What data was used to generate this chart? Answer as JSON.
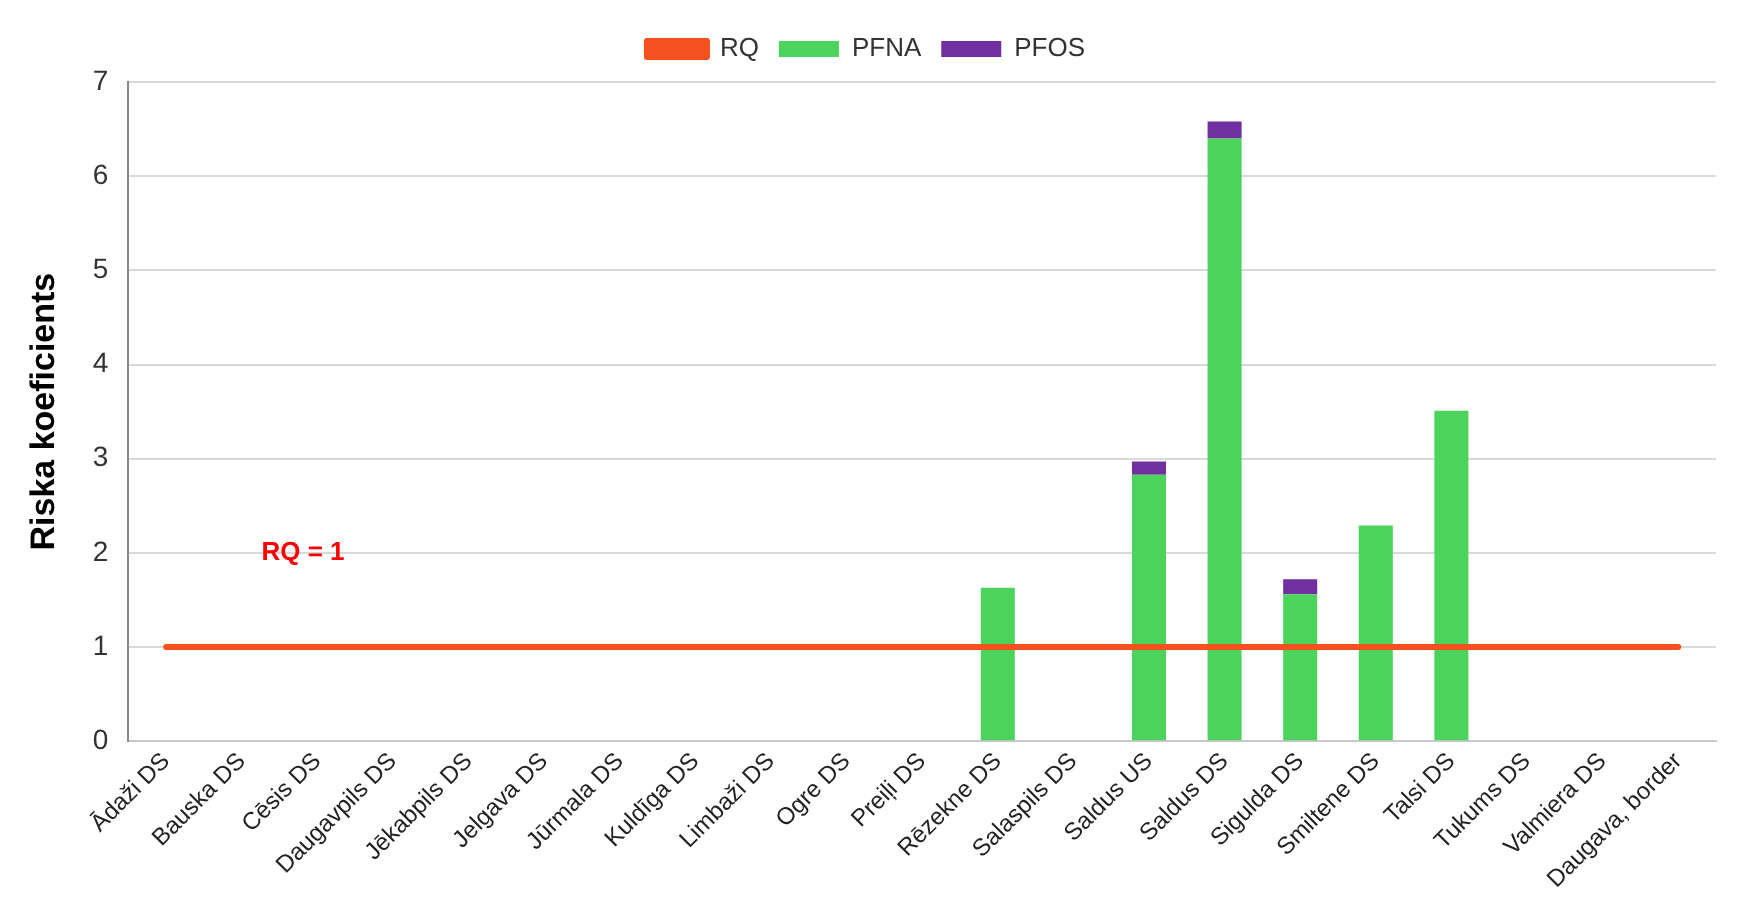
{
  "chart_data": {
    "type": "bar",
    "stacked": true,
    "ylabel": "Riska koeficients",
    "categories": [
      "Ādaži DS",
      "Bauska DS",
      "Cēsis DS",
      "Daugavpils DS",
      "Jēkabpils DS",
      "Jelgava DS",
      "Jūrmala DS",
      "Kuldīga DS",
      "Limbaži DS",
      "Ogre DS",
      "Preiļi DS",
      "Rēzekne DS",
      "Salaspils DS",
      "Saldus US",
      "Saldus DS",
      "Sigulda DS",
      "Smiltene DS",
      "Talsi DS",
      "Tukums DS",
      "Valmiera DS",
      "Daugava, border"
    ],
    "series": [
      {
        "name": "PFNA",
        "color": "#4cd35c",
        "values": [
          0,
          0,
          0,
          0,
          0,
          0,
          0,
          0,
          0,
          0,
          0,
          1.63,
          0,
          2.83,
          6.4,
          1.56,
          2.29,
          3.51,
          0,
          0,
          0
        ]
      },
      {
        "name": "PFOS",
        "color": "#7030a0",
        "values": [
          0,
          0,
          0,
          0,
          0,
          0,
          0,
          0,
          0,
          0,
          0,
          0,
          0,
          0.14,
          0.18,
          0.16,
          0,
          0,
          0,
          0,
          0
        ]
      },
      {
        "name": "RQ",
        "type": "line",
        "color": "#f4511e",
        "marker": "none",
        "values": [
          1,
          1,
          1,
          1,
          1,
          1,
          1,
          1,
          1,
          1,
          1,
          1,
          1,
          1,
          1,
          1,
          1,
          1,
          1,
          1,
          1
        ]
      }
    ],
    "ylim": [
      0,
      7
    ],
    "yticks": [
      0,
      1,
      2,
      3,
      4,
      5,
      6,
      7
    ],
    "grid": "y",
    "legend": "top",
    "annotations": [
      "RQ = 1"
    ]
  }
}
